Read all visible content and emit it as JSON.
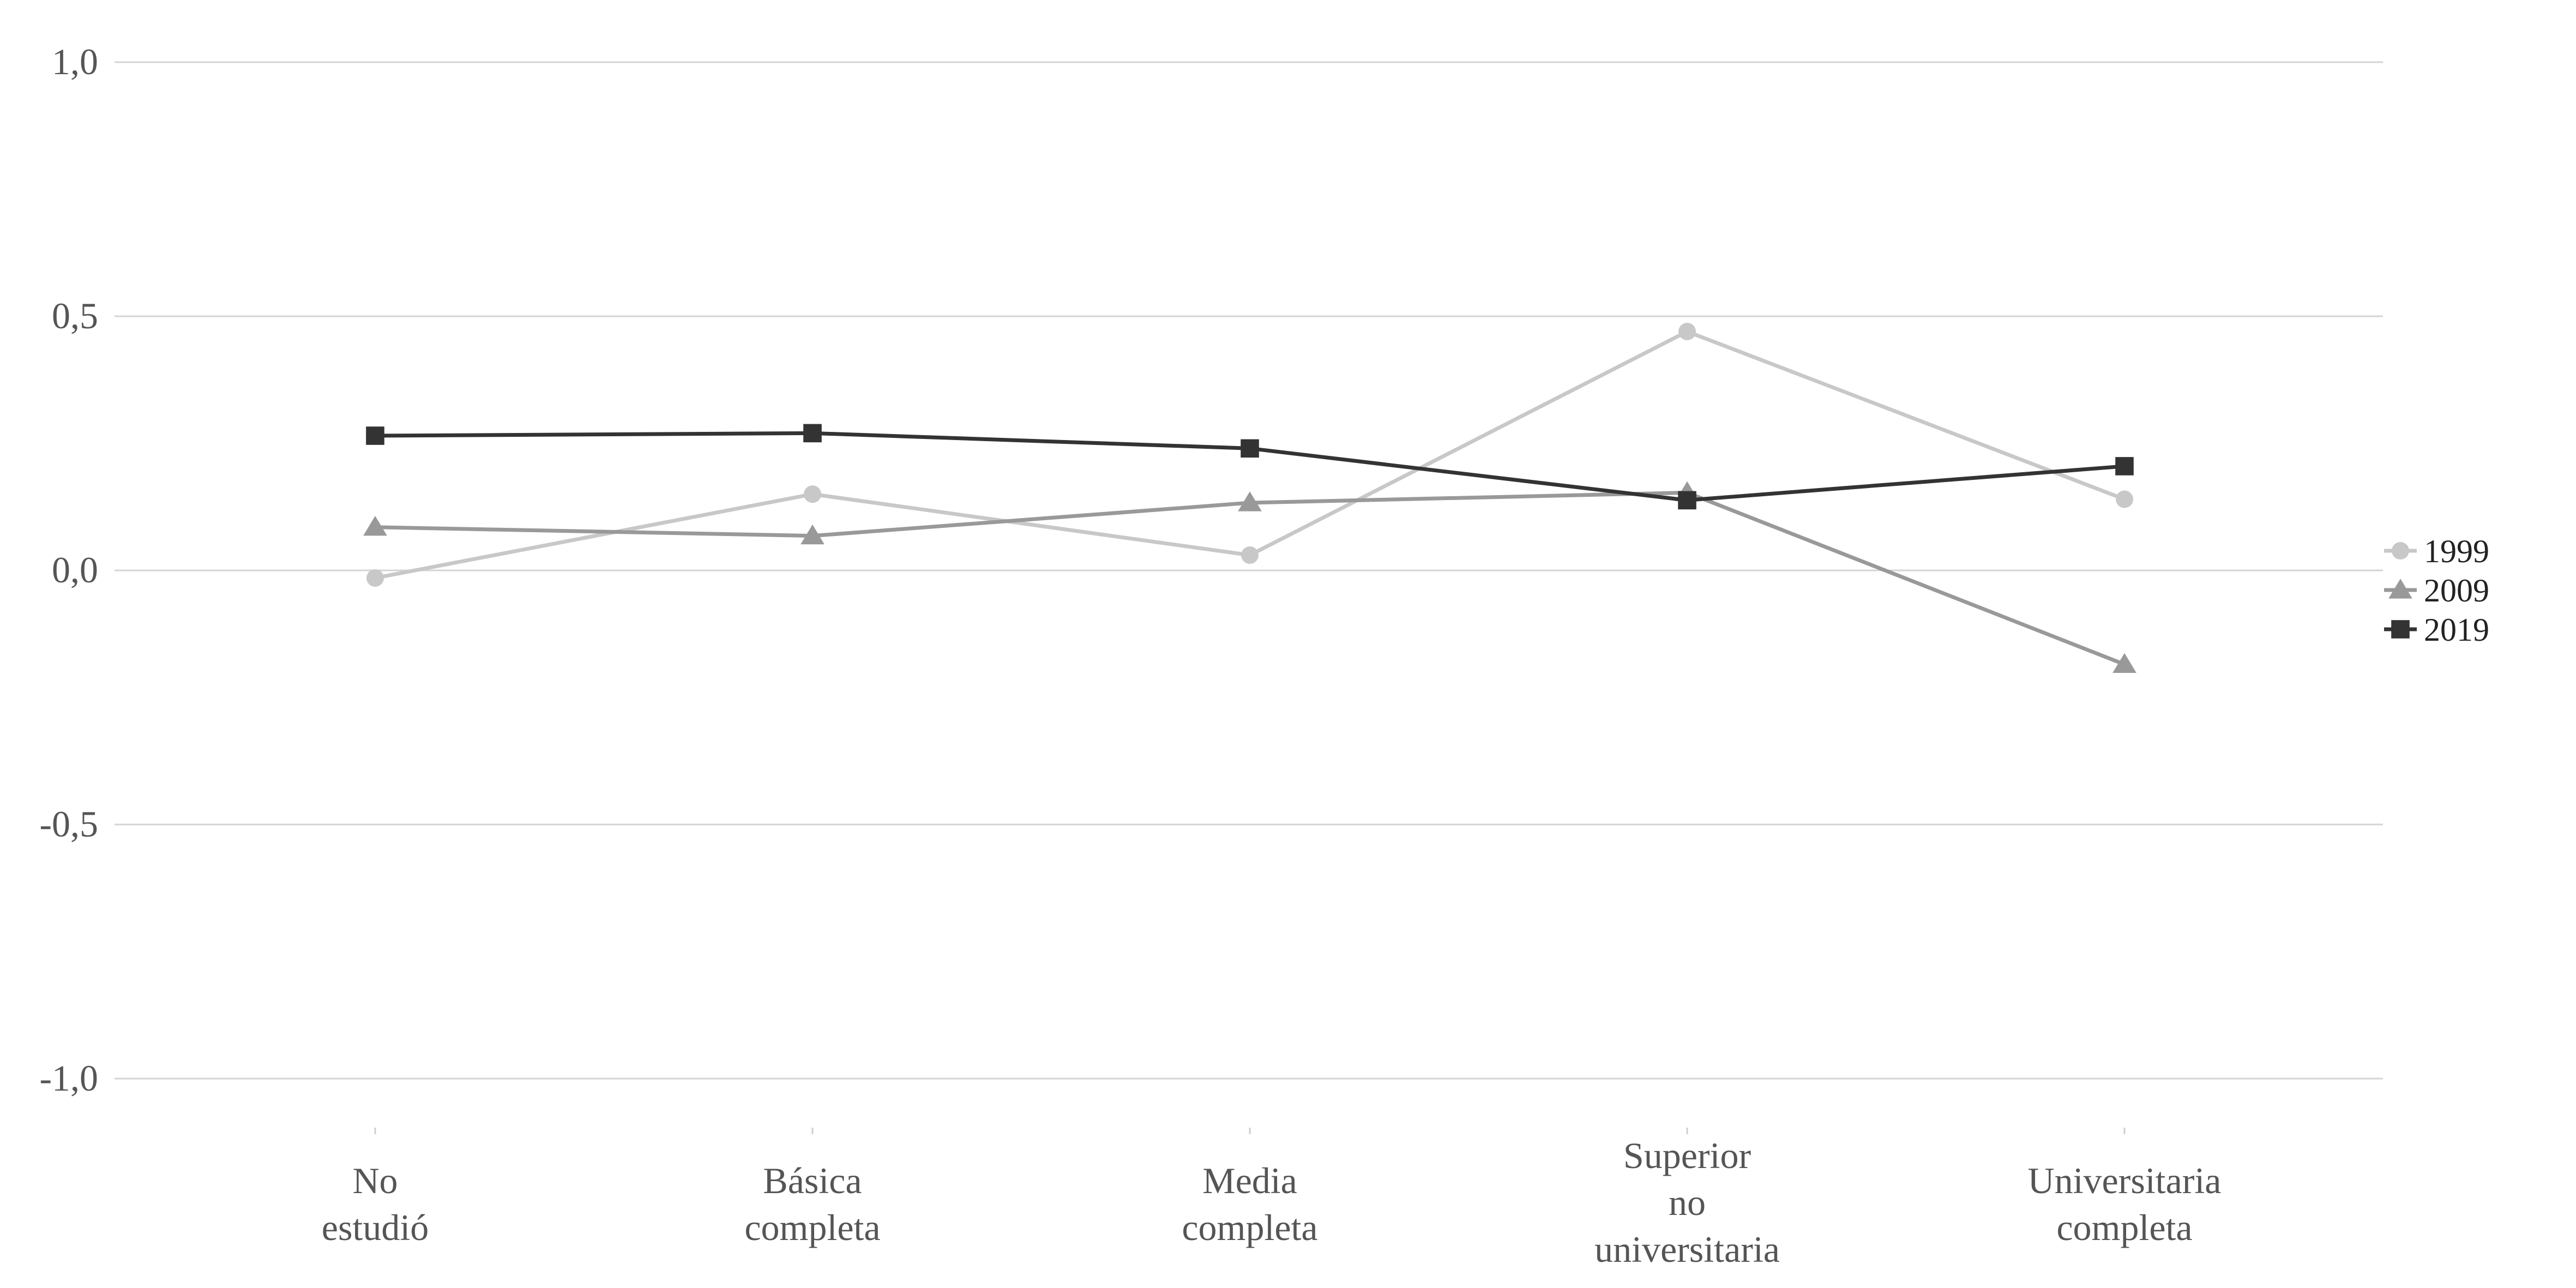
{
  "chart_data": {
    "type": "line",
    "title": "",
    "xlabel": "",
    "ylabel": "",
    "categories": [
      [
        "No",
        "estudió"
      ],
      [
        "Básica",
        "completa"
      ],
      [
        "Media",
        "completa"
      ],
      [
        "Superior",
        "no",
        "universitaria"
      ],
      [
        "Universitaria",
        "completa"
      ]
    ],
    "ylim": [
      -1.0,
      1.0
    ],
    "yticks": [
      1.0,
      0.5,
      0.0,
      -0.5,
      -1.0
    ],
    "ytick_labels": [
      "1,0",
      "0,5",
      "0,0",
      "-0,5",
      "-1,0"
    ],
    "grid": true,
    "legend_position": "right",
    "series": [
      {
        "name": "1999",
        "marker": "circle",
        "color": "#c8c8c8",
        "values": [
          -0.015,
          0.15,
          0.03,
          0.47,
          0.14
        ]
      },
      {
        "name": "2009",
        "marker": "triangle",
        "color": "#999999",
        "values": [
          0.085,
          0.068,
          0.133,
          0.153,
          -0.185
        ]
      },
      {
        "name": "2019",
        "marker": "square",
        "color": "#333333",
        "values": [
          0.265,
          0.27,
          0.24,
          0.138,
          0.205
        ]
      }
    ]
  }
}
